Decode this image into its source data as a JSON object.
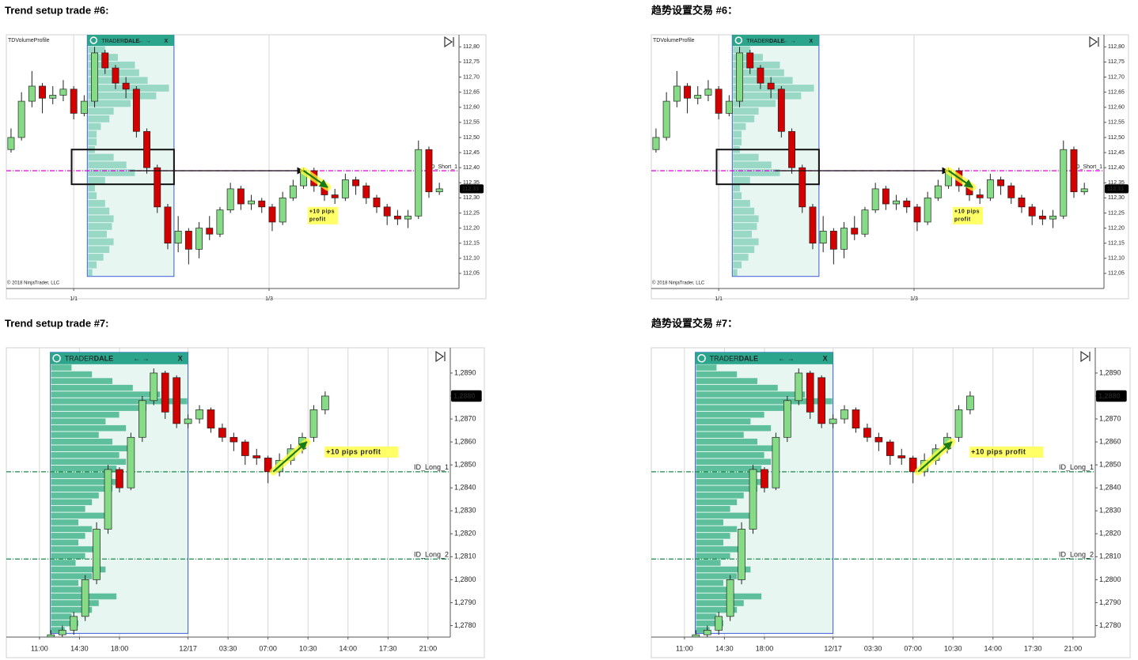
{
  "chart_data": [
    {
      "type": "candlestick",
      "titles": [
        "Trend setup trade #6:",
        "趋势设置交易 #6："
      ],
      "indicator": "TDVolumeProfile",
      "copyright": "© 2018 NinjaTrader, LLC",
      "profile_header": [
        "TRADER",
        "DALE",
        "← →",
        "X"
      ],
      "x": [
        0,
        1,
        2,
        3,
        4,
        5,
        6,
        7,
        8,
        9,
        10,
        11,
        12,
        13,
        14,
        15,
        16,
        17,
        18,
        19,
        20,
        21,
        22,
        23,
        24,
        25,
        26,
        27,
        28,
        29,
        30,
        31,
        32,
        33,
        34,
        35,
        36,
        37,
        38,
        39,
        40,
        41
      ],
      "open": [
        112.46,
        112.5,
        112.62,
        112.67,
        112.63,
        112.64,
        112.66,
        112.58,
        112.62,
        112.78,
        112.73,
        112.68,
        112.66,
        112.52,
        112.4,
        112.27,
        112.15,
        112.19,
        112.13,
        112.2,
        112.18,
        112.26,
        112.33,
        112.28,
        112.29,
        112.27,
        112.22,
        112.3,
        112.34,
        112.39,
        112.34,
        112.31,
        112.3,
        112.36,
        112.34,
        112.3,
        112.27,
        112.24,
        112.23,
        112.24,
        112.46,
        112.32
      ],
      "high": [
        112.53,
        112.65,
        112.72,
        112.68,
        112.67,
        112.69,
        112.67,
        112.64,
        112.8,
        112.79,
        112.74,
        112.7,
        112.67,
        112.53,
        112.41,
        112.28,
        112.24,
        112.2,
        112.22,
        112.24,
        112.27,
        112.35,
        112.34,
        112.31,
        112.3,
        112.28,
        112.32,
        112.36,
        112.4,
        112.4,
        112.35,
        112.33,
        112.38,
        112.37,
        112.35,
        112.31,
        112.28,
        112.26,
        112.26,
        112.49,
        112.47,
        112.35
      ],
      "low": [
        112.45,
        112.49,
        112.6,
        112.58,
        112.61,
        112.62,
        112.56,
        112.57,
        112.6,
        112.71,
        112.66,
        112.63,
        112.5,
        112.38,
        112.25,
        112.13,
        112.12,
        112.08,
        112.1,
        112.16,
        112.17,
        112.25,
        112.26,
        112.26,
        112.25,
        112.19,
        112.21,
        112.29,
        112.33,
        112.32,
        112.29,
        112.28,
        112.29,
        112.31,
        112.28,
        112.25,
        112.21,
        112.21,
        112.2,
        112.23,
        112.3,
        112.31
      ],
      "close": [
        112.5,
        112.62,
        112.67,
        112.63,
        112.64,
        112.66,
        112.58,
        112.62,
        112.78,
        112.73,
        112.68,
        112.66,
        112.52,
        112.4,
        112.27,
        112.15,
        112.19,
        112.13,
        112.2,
        112.18,
        112.26,
        112.33,
        112.28,
        112.29,
        112.27,
        112.22,
        112.3,
        112.34,
        112.39,
        112.34,
        112.31,
        112.3,
        112.36,
        112.34,
        112.3,
        112.27,
        112.24,
        112.23,
        112.24,
        112.46,
        112.32,
        112.33
      ],
      "up_color": "#86dc86",
      "down_color": "#d40000",
      "xlim": [
        -0.45,
        42.88
      ],
      "xticks": [
        {
          "value": 6,
          "label": "1/1"
        },
        {
          "value": 24.7,
          "label": "1/3"
        }
      ],
      "ylim": [
        112.0,
        112.84
      ],
      "yticks": [
        {
          "value": 112.05,
          "label": "112,05"
        },
        {
          "value": 112.1,
          "label": "112,10"
        },
        {
          "value": 112.15,
          "label": "112,15"
        },
        {
          "value": 112.2,
          "label": "112,20"
        },
        {
          "value": 112.25,
          "label": "112,25"
        },
        {
          "value": 112.3,
          "label": "112,30"
        },
        {
          "value": 112.35,
          "label": "112,35"
        },
        {
          "value": 112.4,
          "label": "112,40"
        },
        {
          "value": 112.45,
          "label": "112,45"
        },
        {
          "value": 112.5,
          "label": "112,50"
        },
        {
          "value": 112.55,
          "label": "112,55"
        },
        {
          "value": 112.6,
          "label": "112,60"
        },
        {
          "value": 112.65,
          "label": "112,65"
        },
        {
          "value": 112.7,
          "label": "112,70"
        },
        {
          "value": 112.75,
          "label": "112,75"
        },
        {
          "value": 112.8,
          "label": "112,80"
        }
      ],
      "grid": "x",
      "profile_box": {
        "x": [
          7.3,
          15.6
        ],
        "y": [
          112.04,
          112.84
        ]
      },
      "profile_color": "#9ad8c6",
      "profile": [
        20,
        35,
        55,
        60,
        70,
        95,
        80,
        50,
        30,
        25,
        15,
        10,
        10,
        8,
        30,
        45,
        55,
        20,
        8,
        10,
        20,
        25,
        30,
        28,
        22,
        30,
        25,
        18,
        10,
        5
      ],
      "levels": [
        {
          "name": "ID_Short_1",
          "value": 112.39,
          "color": "#e000e0"
        }
      ],
      "zone": {
        "x": [
          5.8,
          15.6
        ],
        "y": [
          112.345,
          112.46
        ]
      },
      "signal": {
        "x": [
          11.4,
          28
        ],
        "y": 112.39
      },
      "trade": {
        "x": [
          28,
          30.3
        ],
        "y": [
          112.39,
          112.335
        ]
      },
      "annotation": {
        "lines": [
          "+10 pips",
          "profit"
        ],
        "x": 28.4,
        "y": 112.27
      },
      "last_price": {
        "value": 112.33,
        "label": "112,33"
      }
    },
    {
      "type": "candlestick",
      "titles": [
        "Trend setup trade #7:",
        "趋势设置交易 #7："
      ],
      "profile_header": [
        "TRADER",
        "DALE",
        "← →",
        "X"
      ],
      "x": [
        8,
        10,
        12,
        14,
        16,
        18,
        20,
        22,
        24,
        26,
        28,
        30,
        32,
        34,
        36,
        38,
        40,
        42,
        44,
        46,
        48,
        50,
        52,
        54,
        56
      ],
      "open": [
        1.2772,
        1.2776,
        1.2778,
        1.2784,
        1.28,
        1.2822,
        1.2848,
        1.284,
        1.2862,
        1.2878,
        1.289,
        1.2888,
        1.2868,
        1.287,
        1.2874,
        1.2866,
        1.2862,
        1.286,
        1.2854,
        1.2853,
        1.2847,
        1.2852,
        1.2857,
        1.2862,
        1.2874
      ],
      "high": [
        1.2778,
        1.278,
        1.2786,
        1.2802,
        1.2825,
        1.285,
        1.2849,
        1.2864,
        1.288,
        1.2892,
        1.2891,
        1.2889,
        1.2872,
        1.2876,
        1.2875,
        1.2868,
        1.2864,
        1.2861,
        1.2857,
        1.2854,
        1.2855,
        1.2859,
        1.2864,
        1.2876,
        1.2882
      ],
      "low": [
        1.277,
        1.2774,
        1.2776,
        1.2782,
        1.2798,
        1.282,
        1.2838,
        1.2839,
        1.286,
        1.2876,
        1.287,
        1.2866,
        1.2866,
        1.2868,
        1.2864,
        1.286,
        1.2856,
        1.285,
        1.285,
        1.2842,
        1.2845,
        1.285,
        1.2855,
        1.286,
        1.2872
      ],
      "close": [
        1.2776,
        1.2778,
        1.2784,
        1.28,
        1.2822,
        1.2848,
        1.284,
        1.2862,
        1.2878,
        1.289,
        1.2873,
        1.2868,
        1.287,
        1.2874,
        1.2866,
        1.2862,
        1.286,
        1.2854,
        1.2853,
        1.2847,
        1.2852,
        1.2857,
        1.2862,
        1.2874,
        1.288
      ],
      "up_color": "#86dc86",
      "down_color": "#d40000",
      "xlim": [
        0.2,
        77.9
      ],
      "xticks": [
        {
          "value": 6,
          "label": "11:00"
        },
        {
          "value": 13,
          "label": "14:30"
        },
        {
          "value": 20,
          "label": "18:00"
        },
        {
          "value": 32,
          "label": "12/17"
        },
        {
          "value": 39,
          "label": "03:30"
        },
        {
          "value": 46,
          "label": "07:00"
        },
        {
          "value": 53,
          "label": "10:30"
        },
        {
          "value": 60,
          "label": "14:00"
        },
        {
          "value": 67,
          "label": "17:30"
        },
        {
          "value": 74,
          "label": "21:00"
        }
      ],
      "ylim": [
        1.2775,
        1.2901
      ],
      "yticks": [
        {
          "value": 1.278,
          "label": "1,2780"
        },
        {
          "value": 1.279,
          "label": "1,2790"
        },
        {
          "value": 1.28,
          "label": "1,2800"
        },
        {
          "value": 1.281,
          "label": "1,2810"
        },
        {
          "value": 1.282,
          "label": "1,2820"
        },
        {
          "value": 1.283,
          "label": "1,2830"
        },
        {
          "value": 1.284,
          "label": "1,2840"
        },
        {
          "value": 1.285,
          "label": "1,2850"
        },
        {
          "value": 1.286,
          "label": "1,2860"
        },
        {
          "value": 1.287,
          "label": "1,2870"
        },
        {
          "value": 1.288,
          "label": "1,2880"
        },
        {
          "value": 1.289,
          "label": "1,2890"
        }
      ],
      "grid": "x",
      "profile_box": {
        "x": [
          7.9,
          32.0
        ],
        "y": [
          1.27766,
          1.2899
        ]
      },
      "profile_color": "#5dbf9c",
      "profile": [
        15,
        30,
        45,
        60,
        80,
        100,
        70,
        50,
        40,
        55,
        35,
        45,
        60,
        50,
        55,
        48,
        40,
        52,
        45,
        35,
        30,
        25,
        40,
        20,
        30,
        25,
        20,
        35,
        25,
        18,
        40,
        30,
        20,
        25,
        48,
        35,
        30,
        15,
        20,
        10
      ],
      "levels": [
        {
          "name": "ID_Long_1",
          "value": 1.2847,
          "color": "#1a8a4a"
        },
        {
          "name": "ID_Long_2",
          "value": 1.2809,
          "color": "#1a8a4a"
        }
      ],
      "trade": {
        "x": [
          46.9,
          52.8
        ],
        "y": [
          1.2847,
          1.286
        ]
      },
      "annotation": {
        "lines": [
          "+10 pips profit"
        ],
        "x": 55.9,
        "y": 1.2858
      },
      "last_price": {
        "value": 1.288,
        "label": "1,2880"
      }
    }
  ]
}
